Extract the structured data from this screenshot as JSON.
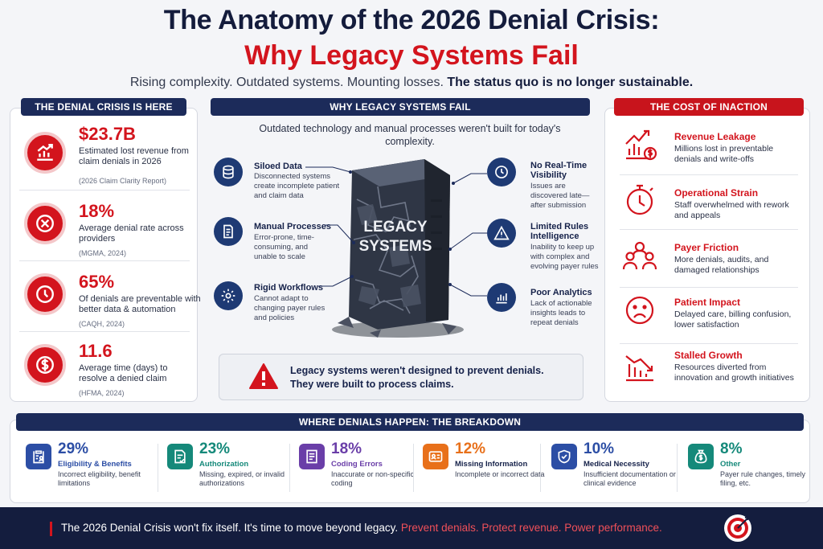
{
  "header": {
    "title_line1": "The Anatomy of the 2026 Denial Crisis:",
    "title_line2": "Why Legacy Systems Fail",
    "subtitle_plain": "Rising complexity. Outdated systems. Mounting losses.",
    "subtitle_bold": "The status quo is no longer sustainable."
  },
  "left_panel": {
    "heading": "THE DENIAL CRISIS IS HERE",
    "stats": [
      {
        "value": "$23.7B",
        "description": "Estimated lost revenue from claim denials in 2026",
        "source": "(2026 Claim Clarity Report)",
        "icon": "chart-growth-icon"
      },
      {
        "value": "18%",
        "description": "Average denial rate across providers",
        "source": "(MGMA, 2024)",
        "icon": "x-circle-icon"
      },
      {
        "value": "65%",
        "description": "Of denials are preventable with better data & automation",
        "source": "(CAQH, 2024)",
        "icon": "clock-icon"
      },
      {
        "value": "11.6",
        "description": "Average time (days) to resolve a denied claim",
        "source": "(HFMA, 2024)",
        "icon": "dollar-icon"
      }
    ]
  },
  "center_panel": {
    "heading": "WHY LEGACY SYSTEMS FAIL",
    "lead": "Outdated technology and manual processes weren't built for today's complexity.",
    "monolith_label_line1": "LEGACY",
    "monolith_label_line2": "SYSTEMS",
    "left_items": [
      {
        "title": "Siloed Data",
        "description": "Disconnected systems create incomplete patient and claim data",
        "icon": "database-icon"
      },
      {
        "title": "Manual Processes",
        "description": "Error-prone, time-consuming, and unable to scale",
        "icon": "document-icon"
      },
      {
        "title": "Rigid Workflows",
        "description": "Cannot adapt to changing payer rules and policies",
        "icon": "gear-icon"
      }
    ],
    "right_items": [
      {
        "title_line1": "No Real-Time",
        "title_line2": "Visibility",
        "description": "Issues are discovered late—after submission",
        "icon": "clock-icon"
      },
      {
        "title_line1": "Limited Rules",
        "title_line2": "Intelligence",
        "description": "Inability to keep up with complex and evolving payer rules",
        "icon": "warning-icon"
      },
      {
        "title_line1": "Poor Analytics",
        "title_line2": "",
        "description": "Lack of actionable insights leads to repeat denials",
        "icon": "bar-chart-icon"
      }
    ],
    "warning_line1": "Legacy systems weren't designed to prevent denials.",
    "warning_line2": "They were built to process claims."
  },
  "right_panel": {
    "heading": "THE COST OF INACTION",
    "items": [
      {
        "title": "Revenue Leakage",
        "description": "Millions lost in preventable denials and write-offs",
        "icon": "revenue-leak-icon"
      },
      {
        "title": "Operational Strain",
        "description": "Staff overwhelmed with rework and appeals",
        "icon": "stopwatch-icon"
      },
      {
        "title": "Payer Friction",
        "description": "More denials, audits, and damaged relationships",
        "icon": "people-icon"
      },
      {
        "title": "Patient Impact",
        "description": "Delayed care, billing confusion, lower satisfaction",
        "icon": "sad-face-icon"
      },
      {
        "title": "Stalled Growth",
        "description": "Resources diverted from innovation and growth initiatives",
        "icon": "declining-chart-icon"
      }
    ]
  },
  "breakdown": {
    "heading": "WHERE DENIALS HAPPEN: THE BREAKDOWN",
    "items": [
      {
        "pct": "29%",
        "title": "Eligibility & Benefits",
        "description": "Incorrect eligibility, benefit limitations",
        "color": "#2c4ea5",
        "icon": "clipboard-user-icon"
      },
      {
        "pct": "23%",
        "title": "Authorization",
        "description": "Missing, expired, or invalid authorizations",
        "color": "#15897a",
        "icon": "document-check-icon"
      },
      {
        "pct": "18%",
        "title": "Coding Errors",
        "description": "Inaccurate or non-specific coding",
        "color": "#6a3ea8",
        "icon": "document-lines-icon"
      },
      {
        "pct": "12%",
        "title": "Missing Information",
        "description": "Incomplete or incorrect data",
        "color": "#e8701a",
        "icon": "id-card-icon"
      },
      {
        "pct": "10%",
        "title": "Medical Necessity",
        "description": "Insufficient documentation or clinical evidence",
        "color": "#2c4ea5",
        "icon": "shield-check-icon"
      },
      {
        "pct": "8%",
        "title": "Other",
        "description": "Payer rule changes, timely filing, etc.",
        "color": "#15897a",
        "icon": "money-bag-icon"
      }
    ]
  },
  "footer": {
    "text": "The 2026 Denial Crisis won't fix itself. It's time to move beyond legacy.",
    "accent": "Prevent denials. Protect revenue. Power performance.",
    "icon": "target-icon"
  }
}
